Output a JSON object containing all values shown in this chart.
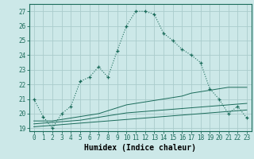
{
  "x": [
    0,
    1,
    2,
    3,
    4,
    5,
    6,
    7,
    8,
    9,
    10,
    11,
    12,
    13,
    14,
    15,
    16,
    17,
    18,
    19,
    20,
    21,
    22,
    23
  ],
  "y_main": [
    21.0,
    19.8,
    19.0,
    20.0,
    20.5,
    22.2,
    22.5,
    23.2,
    22.5,
    24.3,
    26.0,
    27.0,
    27.0,
    26.8,
    25.5,
    25.0,
    24.4,
    24.0,
    23.5,
    21.7,
    21.0,
    20.0,
    20.5,
    19.7
  ],
  "y_line2": [
    19.5,
    19.5,
    19.5,
    19.6,
    19.7,
    19.8,
    19.9,
    20.0,
    20.2,
    20.4,
    20.6,
    20.7,
    20.8,
    20.9,
    21.0,
    21.1,
    21.2,
    21.4,
    21.5,
    21.6,
    21.7,
    21.8,
    21.8,
    21.8
  ],
  "y_line3": [
    19.3,
    19.35,
    19.4,
    19.45,
    19.5,
    19.55,
    19.65,
    19.75,
    19.85,
    19.95,
    20.05,
    20.1,
    20.15,
    20.2,
    20.25,
    20.3,
    20.35,
    20.4,
    20.45,
    20.5,
    20.55,
    20.6,
    20.65,
    20.7
  ],
  "y_line4": [
    19.1,
    19.15,
    19.2,
    19.25,
    19.3,
    19.35,
    19.4,
    19.45,
    19.5,
    19.55,
    19.6,
    19.65,
    19.7,
    19.75,
    19.8,
    19.85,
    19.9,
    19.95,
    20.0,
    20.05,
    20.1,
    20.15,
    20.2,
    20.25
  ],
  "color_main": "#1a6b5a",
  "color_lines": "#1a6b5a",
  "bg_color": "#cce8e8",
  "grid_color": "#aacccc",
  "xlabel": "Humidex (Indice chaleur)",
  "xlim": [
    -0.5,
    23.5
  ],
  "ylim": [
    18.8,
    27.5
  ],
  "yticks": [
    19,
    20,
    21,
    22,
    23,
    24,
    25,
    26,
    27
  ],
  "xticks": [
    0,
    1,
    2,
    3,
    4,
    5,
    6,
    7,
    8,
    9,
    10,
    11,
    12,
    13,
    14,
    15,
    16,
    17,
    18,
    19,
    20,
    21,
    22,
    23
  ],
  "tick_fontsize": 5.5,
  "xlabel_fontsize": 7.0
}
